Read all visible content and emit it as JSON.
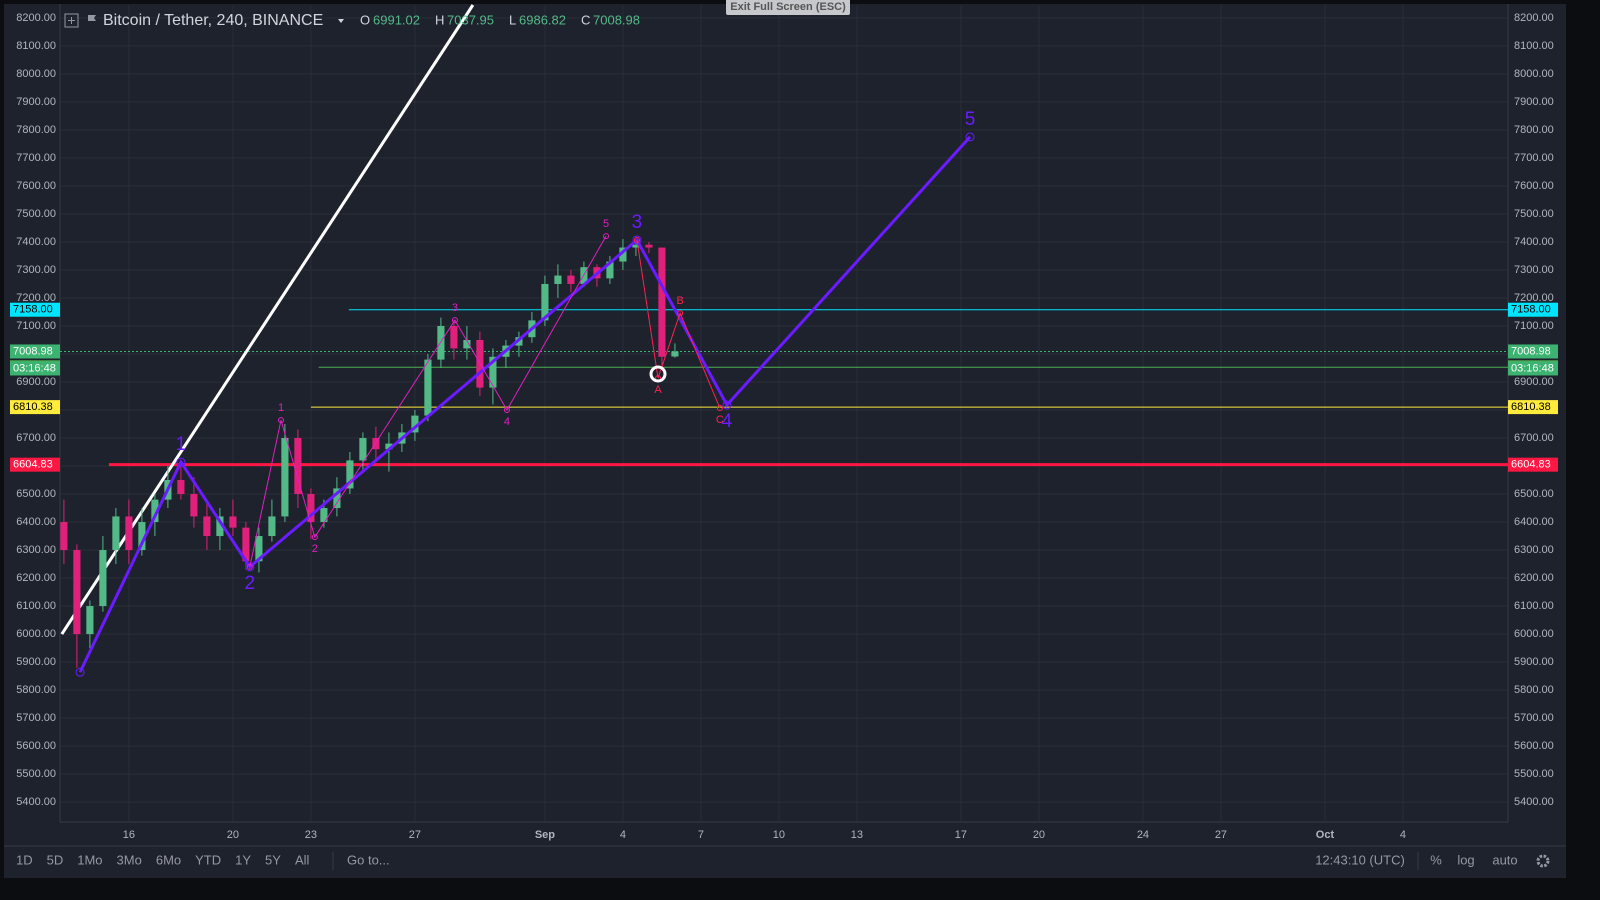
{
  "header": {
    "symbol": "Bitcoin / Tether, 240, BINANCE",
    "open_label": "O",
    "open": 6991.02,
    "high_label": "H",
    "high": 7037.95,
    "low_label": "L",
    "low": 6986.82,
    "close_label": "C",
    "close": 7008.98
  },
  "exit_button": "Exit Full Screen (ESC)",
  "toolbar": {
    "ranges": [
      "1D",
      "5D",
      "1Mo",
      "3Mo",
      "6Mo",
      "YTD",
      "1Y",
      "5Y",
      "All"
    ],
    "goto": "Go to...",
    "clock": "12:43:10 (UTC)",
    "percent": "%",
    "log": "log",
    "auto": "auto"
  },
  "chart_data": {
    "type": "candlestick",
    "xlim": [
      13.35,
      69.04
    ],
    "ylim": [
      5329,
      8246
    ],
    "xticks": [
      16,
      20,
      23,
      27,
      {
        "value": 32,
        "label": "Sep"
      },
      {
        "value": 35,
        "label": "4"
      },
      {
        "value": 38,
        "label": "7"
      },
      {
        "value": 41,
        "label": "10"
      },
      {
        "value": 44,
        "label": "13"
      },
      {
        "value": 48,
        "label": "17"
      },
      {
        "value": 51,
        "label": "20"
      },
      {
        "value": 55,
        "label": "24"
      },
      {
        "value": 58,
        "label": "27"
      },
      {
        "value": 62,
        "label": "Oct"
      },
      {
        "value": 65,
        "label": "4"
      }
    ],
    "yticks": [
      {
        "value": 5400,
        "label": "5400.00"
      },
      {
        "value": 5500,
        "label": "5500.00"
      },
      {
        "value": 5600,
        "label": "5600.00"
      },
      {
        "value": 5700,
        "label": "5700.00"
      },
      {
        "value": 5800,
        "label": "5800.00"
      },
      {
        "value": 5900,
        "label": "5900.00"
      },
      {
        "value": 6000,
        "label": "6000.00"
      },
      {
        "value": 6100,
        "label": "6100.00"
      },
      {
        "value": 6200,
        "label": "6200.00"
      },
      {
        "value": 6300,
        "label": "6300.00"
      },
      {
        "value": 6400,
        "label": "6400.00"
      },
      {
        "value": 6500,
        "label": "6500.00"
      },
      {
        "value": 6600,
        "label": "6600.00"
      },
      {
        "value": 6700,
        "label": "6700.00"
      },
      {
        "value": 6800,
        "label": "6800.00"
      },
      {
        "value": 6900,
        "label": "6900.00"
      },
      {
        "value": 7000,
        "label": "7000.00"
      },
      {
        "value": 7100,
        "label": "7100.00"
      },
      {
        "value": 7200,
        "label": "7200.00"
      },
      {
        "value": 7300,
        "label": "7300.00"
      },
      {
        "value": 7400,
        "label": "7400.00"
      },
      {
        "value": 7500,
        "label": "7500.00"
      },
      {
        "value": 7600,
        "label": "7600.00"
      },
      {
        "value": 7700,
        "label": "7700.00"
      },
      {
        "value": 7800,
        "label": "7800.00"
      },
      {
        "value": 7900,
        "label": "7900.00"
      },
      {
        "value": 8000,
        "label": "8000.00"
      },
      {
        "value": 8100,
        "label": "8100.00"
      },
      {
        "value": 8200,
        "label": "8200.00"
      }
    ],
    "grid": true,
    "up_color": "#53b987",
    "down_color": "#e0207a",
    "x": [
      13.5,
      14,
      14.5,
      15,
      15.5,
      16,
      16.5,
      17,
      17.5,
      18,
      18.5,
      19,
      19.5,
      20,
      20.5,
      21,
      21.5,
      22,
      22.5,
      23,
      23.5,
      24,
      24.5,
      25,
      25.5,
      26,
      26.5,
      27,
      27.5,
      28,
      28.5,
      29,
      29.5,
      30,
      30.5,
      31,
      31.5,
      32,
      32.5,
      33,
      33.5,
      34,
      34.5,
      35,
      35.5,
      36,
      36.5,
      37
    ],
    "open": [
      6400,
      6300,
      6000,
      6100,
      6300,
      6420,
      6300,
      6400,
      6480,
      6550,
      6500,
      6420,
      6350,
      6420,
      6380,
      6260,
      6350,
      6420,
      6700,
      6500,
      6400,
      6450,
      6520,
      6620,
      6700,
      6660,
      6680,
      6720,
      6780,
      6980,
      7100,
      7020,
      7050,
      6880,
      6990,
      7030,
      7060,
      7120,
      7250,
      7280,
      7250,
      7310,
      7270,
      7330,
      7380,
      7390,
      7380,
      6991.02
    ],
    "high": [
      6480,
      6320,
      6120,
      6350,
      6450,
      6480,
      6450,
      6500,
      6600,
      6620,
      6560,
      6470,
      6450,
      6480,
      6400,
      6380,
      6480,
      6750,
      6730,
      6520,
      6480,
      6560,
      6650,
      6720,
      6740,
      6720,
      6750,
      6800,
      7000,
      7130,
      7120,
      7100,
      7080,
      7020,
      7050,
      7080,
      7150,
      7280,
      7320,
      7300,
      7330,
      7320,
      7350,
      7410,
      7410,
      7400,
      7380,
      7037.95
    ],
    "low": [
      6250,
      5880,
      5950,
      6080,
      6250,
      6250,
      6280,
      6350,
      6450,
      6480,
      6380,
      6300,
      6300,
      6350,
      6230,
      6220,
      6330,
      6400,
      6450,
      6340,
      6380,
      6420,
      6500,
      6580,
      6620,
      6580,
      6650,
      6690,
      6760,
      6950,
      6980,
      6980,
      6850,
      6820,
      6950,
      6990,
      7040,
      7100,
      7200,
      7220,
      7240,
      7240,
      7250,
      7300,
      7350,
      7360,
      6960,
      6986.82
    ],
    "close": [
      6300,
      6000,
      6100,
      6300,
      6420,
      6300,
      6400,
      6480,
      6550,
      6500,
      6420,
      6350,
      6420,
      6380,
      6260,
      6350,
      6420,
      6700,
      6500,
      6400,
      6450,
      6520,
      6620,
      6700,
      6660,
      6680,
      6720,
      6780,
      6980,
      7100,
      7020,
      7050,
      6880,
      6990,
      7030,
      7060,
      7120,
      7250,
      7280,
      7250,
      7310,
      7270,
      7330,
      7380,
      7390,
      7380,
      6990,
      7008.98
    ],
    "levels": [
      {
        "value": 7158,
        "label": "7158.00",
        "color": "#00e5ff",
        "from": 24.46
      },
      {
        "value": 7008.98,
        "color": "#3cb371",
        "from": 13.35,
        "dotted": true
      },
      {
        "value": 6952.45,
        "color": "#4caf50",
        "from": 23.3
      },
      {
        "value": 6810.38,
        "color": "#ffeb3b",
        "from": 23.0
      },
      {
        "value": 6604.83,
        "color": "#ff1744",
        "from": 15.23,
        "thick": true
      }
    ],
    "countdown": "03:16:48",
    "trendline": {
      "color": "#ffffff",
      "x": [
        13.42,
        29.23
      ],
      "y": [
        6000,
        8246
      ]
    },
    "waves": [
      {
        "color": "#6a1bff",
        "size": "big",
        "x": [
          14.12,
          18.0,
          20.65,
          35.54,
          39.0,
          48.35
        ],
        "y": [
          5864,
          6614,
          6240,
          7407,
          6818,
          7775
        ],
        "labels": [
          null,
          "1",
          "2",
          "3",
          "4",
          "5"
        ]
      },
      {
        "color": "#e020c0",
        "size": "small",
        "x": [
          20.65,
          21.85,
          23.15,
          28.54,
          30.54,
          34.35
        ],
        "y": [
          6240,
          6764,
          6346,
          7121,
          6800,
          7421
        ],
        "labels": [
          null,
          "1",
          "2",
          "3",
          "4",
          "5"
        ]
      },
      {
        "color": "#ff2050",
        "size": "small",
        "x": [
          35.54,
          36.35,
          37.2,
          38.73
        ],
        "y": [
          7407,
          6914,
          7146,
          6807
        ],
        "labels": [
          null,
          "A",
          "B",
          "C"
        ]
      }
    ]
  }
}
